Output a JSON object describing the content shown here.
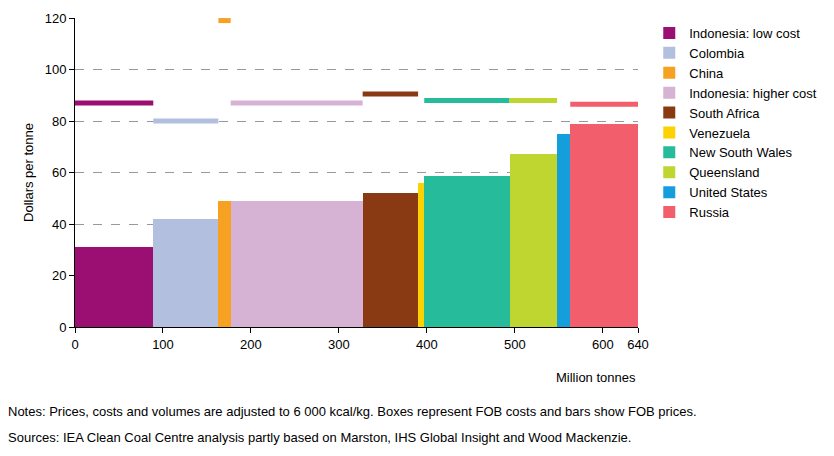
{
  "chart_data": {
    "type": "bar",
    "y_label": "Dollars per tonne",
    "x_label": "Million tonnes",
    "notes": [
      "Notes: Prices, costs and volumes are adjusted to 6 000 kcal/kg. Boxes represent FOB costs and bars show FOB prices.",
      "Sources: IEA Clean Coal Centre analysis partly based on Marston, IHS Global Insight and Wood Mackenzie."
    ],
    "xlim": [
      0,
      640
    ],
    "xticks": [
      0,
      100,
      200,
      300,
      400,
      500,
      600,
      640
    ],
    "ylim": [
      0,
      120
    ],
    "yticks": [
      0,
      20,
      40,
      60,
      80,
      100,
      120
    ],
    "grid": true,
    "legend": "right",
    "series": [
      {
        "name": "Indonesia: low cost",
        "color": "#9b0f72",
        "x0": 0,
        "x1": 89,
        "values": [
          31
        ],
        "price": [
          87
        ]
      },
      {
        "name": "Colombia",
        "color": "#b3bfdf",
        "x0": 89,
        "x1": 163,
        "values": [
          42
        ],
        "price": [
          80
        ]
      },
      {
        "name": "China",
        "color": "#f7a122",
        "x0": 163,
        "x1": 177,
        "values": [
          49
        ],
        "price": [
          119
        ]
      },
      {
        "name": "Indonesia: higher cost",
        "color": "#d6b3d4",
        "x0": 177,
        "x1": 327,
        "values": [
          49
        ],
        "price": [
          87
        ]
      },
      {
        "name": "South Africa",
        "color": "#8a3a13",
        "x0": 327,
        "x1": 390,
        "values": [
          52
        ],
        "price": [
          90.5
        ]
      },
      {
        "name": "Venezuela",
        "color": "#fcd200",
        "x0": 390,
        "x1": 397,
        "values": [
          56
        ],
        "price": [
          null
        ]
      },
      {
        "name": "New South Wales",
        "color": "#26bb9b",
        "x0": 397,
        "x1": 494,
        "values": [
          58.5
        ],
        "price": [
          88
        ]
      },
      {
        "name": "Queensland",
        "color": "#bed62f",
        "x0": 494,
        "x1": 548,
        "values": [
          67
        ],
        "price": [
          88
        ]
      },
      {
        "name": "United States",
        "color": "#149fdc",
        "x0": 548,
        "x1": 563,
        "values": [
          75
        ],
        "price": [
          null
        ]
      },
      {
        "name": "Russia",
        "color": "#f25e6b",
        "x0": 563,
        "x1": 640,
        "values": [
          79
        ],
        "price": [
          86.5
        ]
      }
    ]
  }
}
